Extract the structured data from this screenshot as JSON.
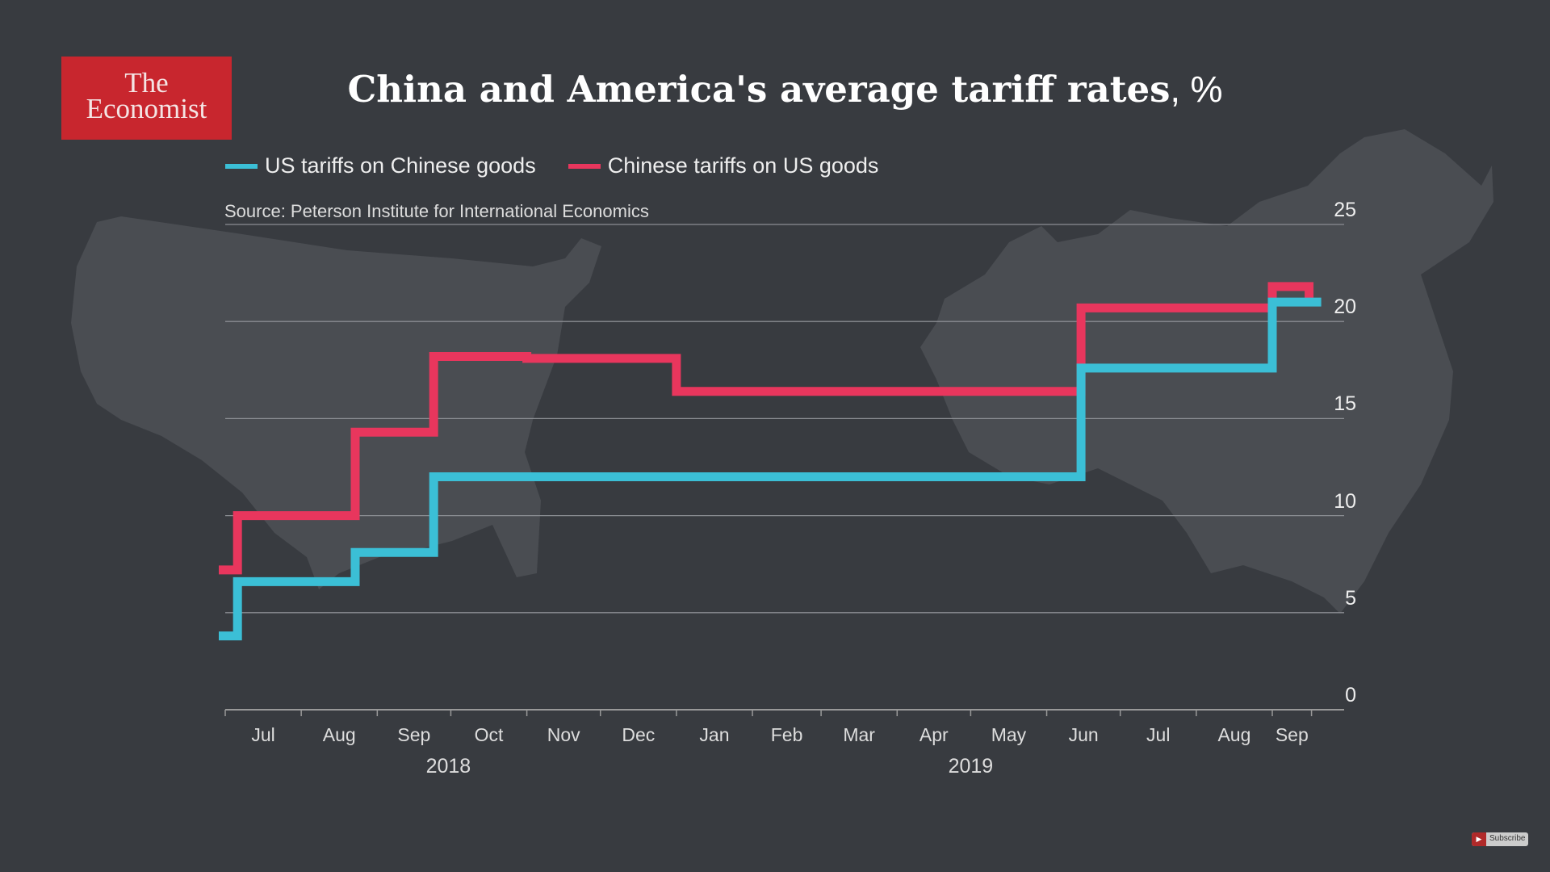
{
  "logo": {
    "line1": "The",
    "line2": "Economist",
    "color": "#c8262e"
  },
  "subscribe_label": "Subscribe",
  "chart_data": {
    "type": "line",
    "step": true,
    "title": "China and America's average tariff rates",
    "title_unit": ", %",
    "source": "Source: Peterson Institute for International Economics",
    "ylim": [
      0,
      25
    ],
    "yticks": [
      "0",
      "5",
      "10",
      "15",
      "20",
      "25"
    ],
    "ytick_values": [
      0,
      5,
      10,
      15,
      20,
      25
    ],
    "grid": true,
    "legend_position": "top-left",
    "x_months": [
      {
        "label": "Jul",
        "start": "2018-07-01"
      },
      {
        "label": "Aug",
        "start": "2018-08-01"
      },
      {
        "label": "Sep",
        "start": "2018-09-01"
      },
      {
        "label": "Oct",
        "start": "2018-10-01"
      },
      {
        "label": "Nov",
        "start": "2018-11-01"
      },
      {
        "label": "Dec",
        "start": "2018-12-01"
      },
      {
        "label": "Jan",
        "start": "2019-01-01"
      },
      {
        "label": "Feb",
        "start": "2019-02-01"
      },
      {
        "label": "Mar",
        "start": "2019-03-01"
      },
      {
        "label": "Apr",
        "start": "2019-04-01"
      },
      {
        "label": "May",
        "start": "2019-05-01"
      },
      {
        "label": "Jun",
        "start": "2019-06-01"
      },
      {
        "label": "Jul",
        "start": "2019-07-01"
      },
      {
        "label": "Aug",
        "start": "2019-08-01"
      },
      {
        "label": "Sep",
        "start": "2019-09-01"
      }
    ],
    "x_end": "2019-09-17",
    "years": [
      {
        "label": "2018",
        "center": "2018-09-30"
      },
      {
        "label": "2019",
        "center": "2019-05-01"
      }
    ],
    "series": [
      {
        "name": "Chinese tariffs on US goods",
        "color": "#e8365d",
        "x": [
          "2018-07-01",
          "2018-07-06",
          "2018-08-23",
          "2018-09-24",
          "2018-11-01",
          "2019-01-01",
          "2019-06-15",
          "2019-09-01",
          "2019-09-16"
        ],
        "values": [
          7.2,
          10.0,
          14.3,
          18.2,
          18.1,
          16.4,
          20.7,
          21.8,
          21.0
        ]
      },
      {
        "name": "US tariffs on Chinese goods",
        "color": "#3bbfd6",
        "x": [
          "2018-07-01",
          "2018-07-06",
          "2018-08-23",
          "2018-09-24",
          "2019-06-15",
          "2019-09-01"
        ],
        "values": [
          3.8,
          6.6,
          8.1,
          12.0,
          17.6,
          21.0
        ]
      }
    ]
  }
}
